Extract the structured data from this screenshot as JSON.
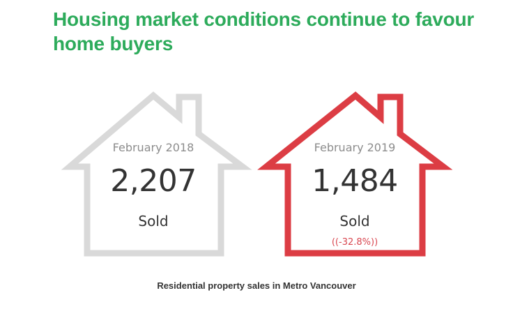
{
  "headline": "Housing market conditions continue to favour home buyers",
  "houses": [
    {
      "period": "February 2018",
      "count": "2,207",
      "label": "Sold",
      "outline_color": "#d9d9d9"
    },
    {
      "period": "February 2019",
      "count": "1,484",
      "label": "Sold",
      "change": "((-32.8%))",
      "outline_color": "#dc3d44"
    }
  ],
  "caption": "Residential property sales in Metro Vancouver",
  "colors": {
    "headline": "#2dab5b",
    "change": "#d94750"
  }
}
